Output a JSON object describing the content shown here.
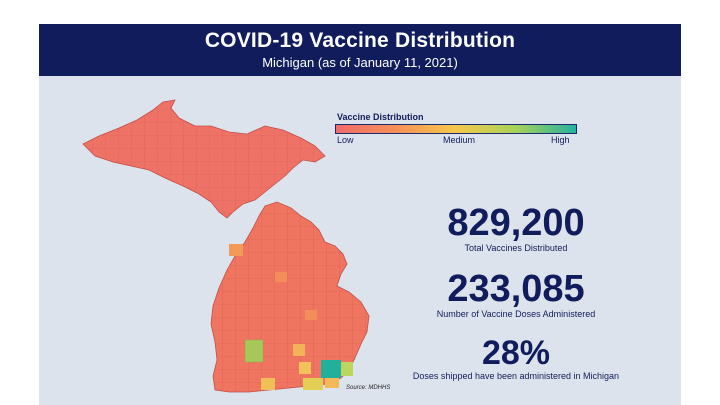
{
  "header": {
    "title": "COVID-19 Vaccine Distribution",
    "subtitle": "Michigan (as of January 11, 2021)"
  },
  "legend": {
    "title": "Vaccine Distribution",
    "low": "Low",
    "medium": "Medium",
    "high": "High",
    "colors": [
      "#f16b6b",
      "#f5905a",
      "#f5c84a",
      "#a8d25a",
      "#21b39f"
    ]
  },
  "stats": [
    {
      "value": "829,200",
      "label": "Total Vaccines Distributed"
    },
    {
      "value": "233,085",
      "label": "Number of Vaccine Doses Administered"
    },
    {
      "value": "28%",
      "label": "Doses shipped have been administered in Michigan"
    }
  ],
  "source": "Source: MDHHS",
  "colors": {
    "header_bg": "#101c5c",
    "panel_bg": "#dde3ec",
    "low": "#f16b6b",
    "high": "#21b39f"
  }
}
